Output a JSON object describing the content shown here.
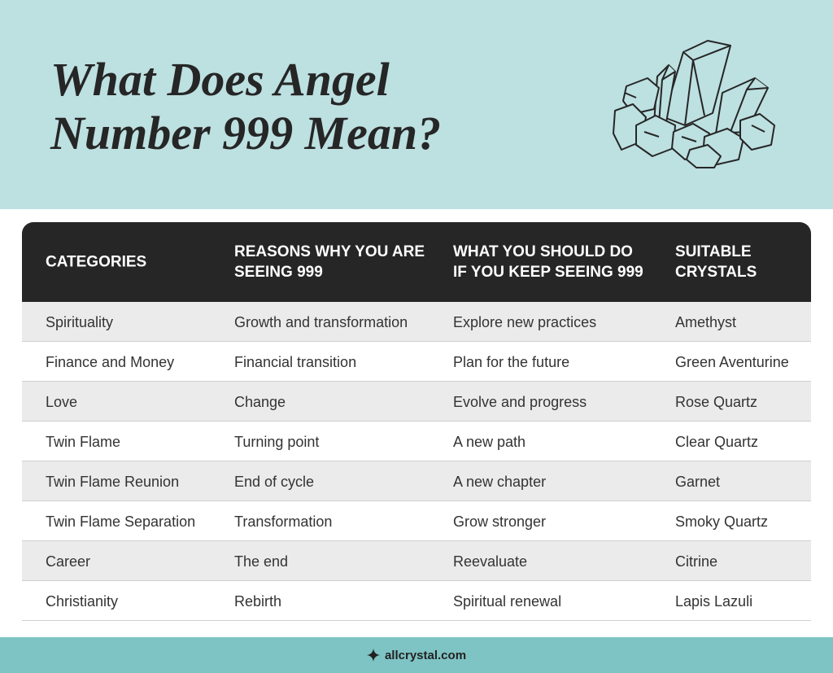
{
  "header": {
    "title_lines": [
      "What Does Angel",
      "Number 999 Mean?"
    ]
  },
  "table": {
    "columns": [
      "CATEGORIES",
      "REASONS WHY YOU ARE SEEING 999",
      "WHAT YOU SHOULD DO IF YOU KEEP SEEING 999",
      "SUITABLE CRYSTALS"
    ],
    "rows": [
      [
        "Spirituality",
        "Growth and transformation",
        "Explore new practices",
        "Amethyst"
      ],
      [
        "Finance and Money",
        "Financial transition",
        "Plan for the future",
        "Green Aventurine"
      ],
      [
        "Love",
        "Change",
        "Evolve and progress",
        "Rose Quartz"
      ],
      [
        "Twin Flame",
        "Turning point",
        "A new path",
        "Clear Quartz"
      ],
      [
        "Twin Flame Reunion",
        "End of cycle",
        "A new chapter",
        "Garnet"
      ],
      [
        "Twin Flame Separation",
        "Transformation",
        "Grow stronger",
        "Smoky Quartz"
      ],
      [
        "Career",
        "The end",
        "Reevaluate",
        "Citrine"
      ],
      [
        "Christianity",
        "Rebirth",
        "Spiritual renewal",
        "Lapis Lazuli"
      ]
    ]
  },
  "footer": {
    "site": "allcrystal.com"
  }
}
